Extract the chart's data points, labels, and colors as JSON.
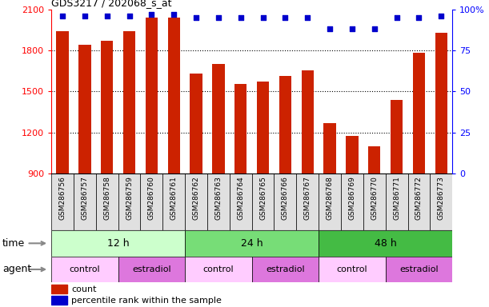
{
  "title": "GDS3217 / 202068_s_at",
  "samples": [
    "GSM286756",
    "GSM286757",
    "GSM286758",
    "GSM286759",
    "GSM286760",
    "GSM286761",
    "GSM286762",
    "GSM286763",
    "GSM286764",
    "GSM286765",
    "GSM286766",
    "GSM286767",
    "GSM286768",
    "GSM286769",
    "GSM286770",
    "GSM286771",
    "GSM286772",
    "GSM286773"
  ],
  "counts": [
    1940,
    1840,
    1870,
    1940,
    2040,
    2040,
    1630,
    1700,
    1555,
    1570,
    1610,
    1655,
    1270,
    1175,
    1100,
    1440,
    1780,
    1930
  ],
  "percentile_ranks": [
    96,
    96,
    96,
    96,
    97,
    97,
    95,
    95,
    95,
    95,
    95,
    95,
    88,
    88,
    88,
    95,
    95,
    96
  ],
  "bar_color": "#cc2200",
  "dot_color": "#0000cc",
  "ylim_left": [
    900,
    2100
  ],
  "ylim_right": [
    0,
    100
  ],
  "yticks_left": [
    900,
    1200,
    1500,
    1800,
    2100
  ],
  "yticks_right": [
    0,
    25,
    50,
    75,
    100
  ],
  "time_groups": [
    {
      "label": "12 h",
      "start": 0,
      "end": 6,
      "color": "#ccffcc"
    },
    {
      "label": "24 h",
      "start": 6,
      "end": 12,
      "color": "#77dd77"
    },
    {
      "label": "48 h",
      "start": 12,
      "end": 18,
      "color": "#44bb44"
    }
  ],
  "agent_groups": [
    {
      "label": "control",
      "start": 0,
      "end": 3,
      "color": "#ffccff"
    },
    {
      "label": "estradiol",
      "start": 3,
      "end": 6,
      "color": "#dd77dd"
    },
    {
      "label": "control",
      "start": 6,
      "end": 9,
      "color": "#ffccff"
    },
    {
      "label": "estradiol",
      "start": 9,
      "end": 12,
      "color": "#dd77dd"
    },
    {
      "label": "control",
      "start": 12,
      "end": 15,
      "color": "#ffccff"
    },
    {
      "label": "estradiol",
      "start": 15,
      "end": 18,
      "color": "#dd77dd"
    }
  ],
  "legend_count_color": "#cc2200",
  "legend_dot_color": "#0000cc",
  "time_label": "time",
  "agent_label": "agent",
  "background_color": "#ffffff",
  "xlabels_bg": "#e0e0e0",
  "grid_color": "#000000",
  "bar_width": 0.55
}
